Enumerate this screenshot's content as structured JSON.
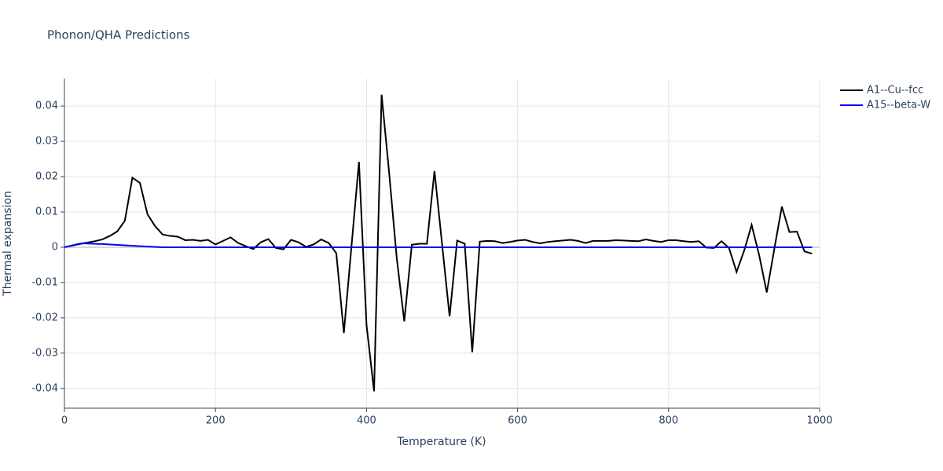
{
  "chart_data": {
    "type": "line",
    "title": "Phonon/QHA Predictions",
    "x_label": "Temperature (K)",
    "y_label": "Thermal expansion",
    "xlim": [
      0,
      1000
    ],
    "xticks": [
      0,
      200,
      400,
      600,
      800,
      1000
    ],
    "ylim": [
      -0.0456,
      0.0478
    ],
    "yticks": [
      -0.04,
      -0.03,
      -0.02,
      -0.01,
      0,
      0.01,
      0.02,
      0.03,
      0.04
    ],
    "grid": true,
    "legend": "top-right",
    "series": [
      {
        "name": "A1--Cu--fcc",
        "color": "#000000",
        "x": [
          0,
          10,
          20,
          30,
          40,
          50,
          60,
          70,
          80,
          90,
          100,
          110,
          120,
          130,
          140,
          150,
          160,
          170,
          180,
          190,
          200,
          210,
          220,
          230,
          240,
          250,
          260,
          270,
          280,
          290,
          300,
          310,
          320,
          330,
          340,
          350,
          360,
          370,
          380,
          390,
          400,
          410,
          420,
          430,
          440,
          450,
          460,
          470,
          480,
          490,
          500,
          510,
          520,
          530,
          540,
          550,
          560,
          570,
          580,
          590,
          600,
          610,
          620,
          630,
          640,
          650,
          660,
          670,
          680,
          690,
          700,
          710,
          720,
          730,
          740,
          750,
          760,
          770,
          780,
          790,
          800,
          810,
          820,
          830,
          840,
          850,
          860,
          870,
          880,
          890,
          900,
          910,
          920,
          930,
          940,
          950,
          960,
          970,
          980,
          990
        ],
        "values": [
          0,
          0.0005,
          0.001,
          0.0013,
          0.0017,
          0.0022,
          0.0032,
          0.0045,
          0.0075,
          0.0197,
          0.0182,
          0.0093,
          0.006,
          0.0036,
          0.0032,
          0.003,
          0.002,
          0.0021,
          0.0018,
          0.0021,
          0.0008,
          0.0018,
          0.0028,
          0.0012,
          0.0003,
          -0.0005,
          0.0014,
          0.0023,
          -0.0002,
          -0.0006,
          0.0021,
          0.0014,
          0.0001,
          0.0008,
          0.0022,
          0.0012,
          -0.0017,
          -0.0243,
          0.0,
          0.0242,
          -0.022,
          -0.0408,
          0.0432,
          0.021,
          -0.003,
          -0.021,
          0.0007,
          0.001,
          0.001,
          0.0216,
          0.001,
          -0.0196,
          0.0019,
          0.001,
          -0.0297,
          0.0016,
          0.0018,
          0.0017,
          0.0012,
          0.0015,
          0.0019,
          0.0021,
          0.0015,
          0.0011,
          0.0015,
          0.0017,
          0.0019,
          0.0021,
          0.0018,
          0.0012,
          0.0018,
          0.0018,
          0.0018,
          0.002,
          0.0019,
          0.0018,
          0.0017,
          0.0022,
          0.0018,
          0.0015,
          0.002,
          0.002,
          0.0017,
          0.0015,
          0.0017,
          -0.0001,
          -0.0002,
          0.0017,
          -0.0002,
          -0.007,
          -0.001,
          0.0063,
          -0.0023,
          -0.0128,
          -0.0005,
          0.0115,
          0.0043,
          0.0044,
          -0.0012,
          -0.0018
        ]
      },
      {
        "name": "A15--beta-W",
        "color": "#0000ff",
        "x": [
          0,
          25,
          50,
          75,
          100,
          130,
          990
        ],
        "values": [
          0,
          0.0011,
          0.0009,
          0.0006,
          0.0003,
          0,
          0
        ]
      }
    ]
  }
}
